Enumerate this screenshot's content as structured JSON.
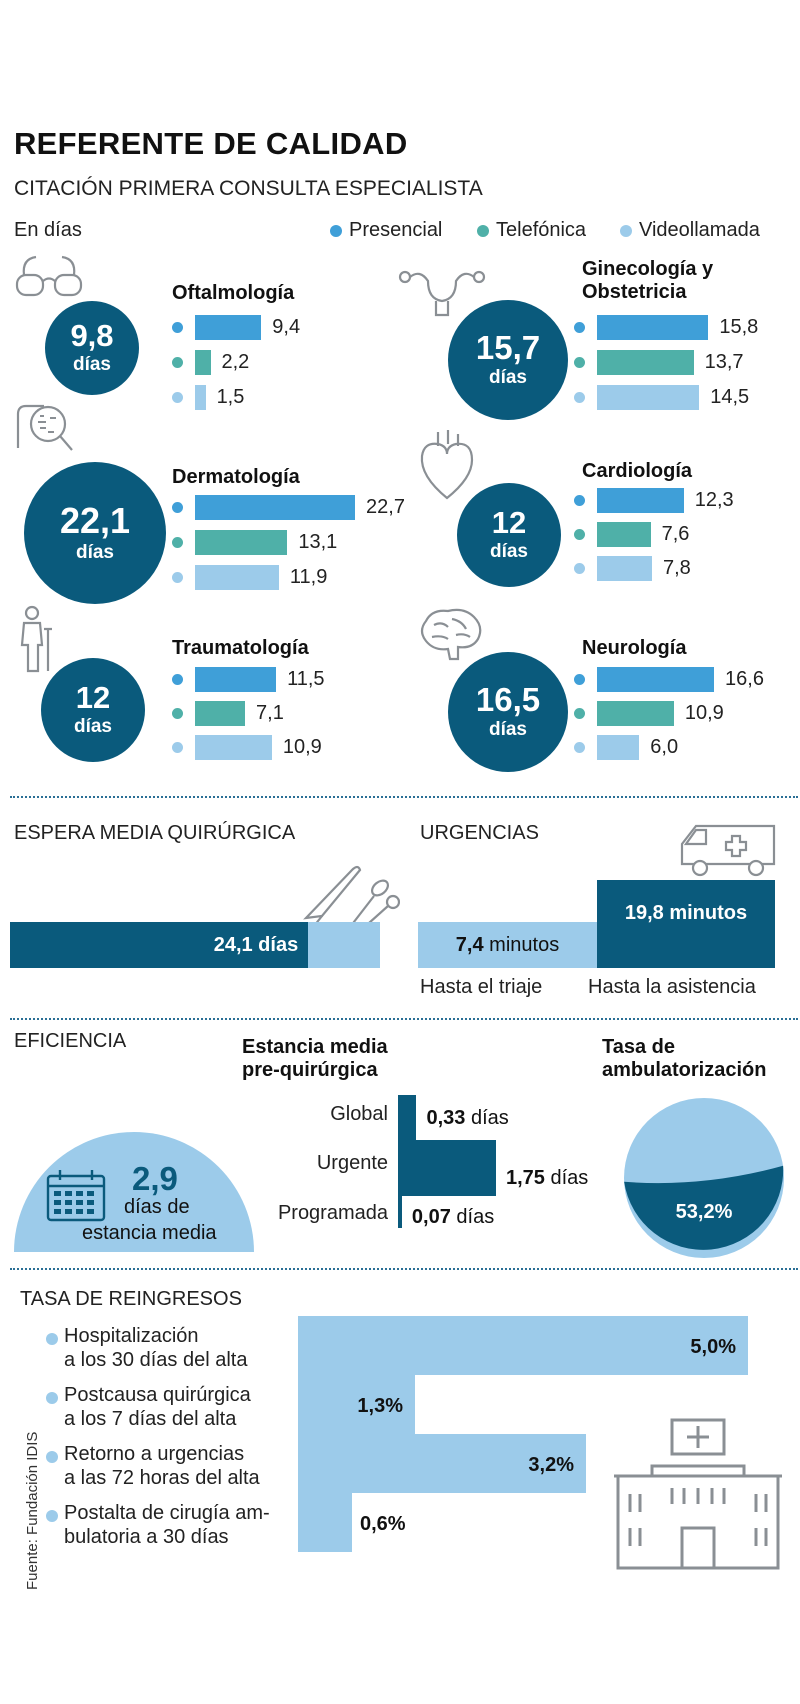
{
  "header": {
    "title": "REFERENTE DE CALIDAD",
    "subtitle": "CITACIÓN PRIMERA CONSULTA ESPECIALISTA",
    "unit": "En días"
  },
  "colors": {
    "dark": "#0a5a7c",
    "presencial": "#3f9fd8",
    "telefonica": "#4fb0a8",
    "videollamada": "#9ccbea"
  },
  "chart_data": [
    {
      "type": "bar",
      "title": "CITACIÓN PRIMERA CONSULTA ESPECIALISTA",
      "ylabel": "En días",
      "legend": [
        "Presencial",
        "Telefónica",
        "Videollamada"
      ],
      "categories": [
        "Oftalmología",
        "Ginecología y Obstetricia",
        "Dermatología",
        "Cardiología",
        "Traumatología",
        "Neurología"
      ],
      "totals": [
        "9,8",
        "15,7",
        "22,1",
        "12",
        "12",
        "16,5"
      ],
      "series": [
        {
          "name": "Presencial",
          "values": [
            9.4,
            15.8,
            22.7,
            12.3,
            11.5,
            16.6
          ],
          "labels": [
            "9,4",
            "15,8",
            "22,7",
            "12,3",
            "11,5",
            "16,6"
          ]
        },
        {
          "name": "Telefónica",
          "values": [
            2.2,
            13.7,
            13.1,
            7.6,
            7.1,
            10.9
          ],
          "labels": [
            "2,2",
            "13,7",
            "13,1",
            "7,6",
            "7,1",
            "10,9"
          ]
        },
        {
          "name": "Videollamada",
          "values": [
            1.5,
            14.5,
            11.9,
            7.8,
            10.9,
            6.0
          ],
          "labels": [
            "1,5",
            "14,5",
            "11,9",
            "7,8",
            "10,9",
            "6,0"
          ]
        }
      ]
    },
    {
      "type": "bar",
      "title": "ESPERA MEDIA QUIRÚRGICA",
      "values": [
        24.1
      ],
      "labels": [
        "24,1 días"
      ]
    },
    {
      "type": "bar",
      "title": "URGENCIAS",
      "categories": [
        "Hasta el triaje",
        "Hasta la asistencia"
      ],
      "values": [
        7.4,
        19.8
      ],
      "value_labels": [
        "7,4",
        "19,8 minutos"
      ],
      "unit": "minutos"
    },
    {
      "type": "bar",
      "title": "Estancia media pre-quirúrgica",
      "categories": [
        "Global",
        "Urgente",
        "Programada"
      ],
      "values": [
        0.33,
        1.75,
        0.07
      ],
      "labels": [
        "0,33",
        "1,75",
        "0,07"
      ],
      "unit": "días"
    },
    {
      "type": "pie",
      "title": "Tasa de ambulatorización",
      "values": [
        53.2,
        46.8
      ],
      "label": "53,2%"
    },
    {
      "type": "bar",
      "title": "TASA DE REINGRESOS",
      "categories": [
        [
          "Hospitalización",
          "a los 30 días del alta"
        ],
        [
          "Postcausa quirúrgica",
          "a los 7 días del alta"
        ],
        [
          "Retorno a urgencias",
          "a las 72 horas del alta"
        ],
        [
          "Postalta de cirugía am-",
          "bulatoria a 30 días"
        ]
      ],
      "values": [
        5.0,
        1.3,
        3.2,
        0.6
      ],
      "labels": [
        "5,0%",
        "1,3%",
        "3,2%",
        "0,6%"
      ]
    }
  ],
  "common": {
    "dias": "días"
  },
  "quirurgica": {
    "title": "ESPERA MEDIA QUIRÚRGICA"
  },
  "urgencias": {
    "title": "URGENCIAS",
    "triaje_value": "7,4",
    "unit": "minutos"
  },
  "eficiencia": {
    "title": "EFICIENCIA",
    "estancia_title_1": "Estancia media",
    "estancia_title_2": "pre-quirúrgica",
    "dome_value": "2,9",
    "dome_l1": "días de",
    "dome_l2": "estancia media",
    "ambu_title_1": "Tasa de",
    "ambu_title_2": "ambulatorización"
  },
  "reingresos": {
    "title": "TASA DE REINGRESOS"
  },
  "source": "Fuente: Fundación IDIS",
  "icons": [
    "glasses-icon",
    "uterus-icon",
    "skin-magnifier-icon",
    "heart-icon",
    "person-crutch-icon",
    "brain-icon",
    "scalpel-icon",
    "ambulance-icon",
    "calendar-icon",
    "hospital-icon"
  ]
}
